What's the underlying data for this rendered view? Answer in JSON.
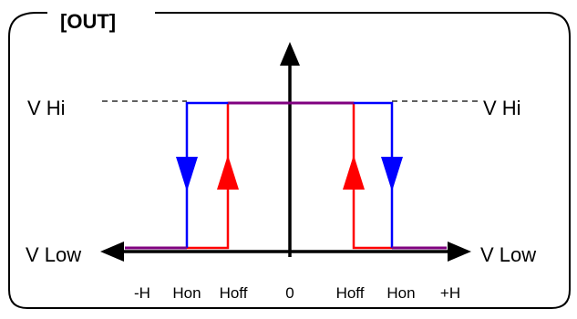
{
  "title": "[OUT]",
  "levels": {
    "high_left": "V  Hi",
    "high_right": "V  Hi",
    "low_left": "V Low",
    "low_right": "V Low"
  },
  "x_ticks": [
    "-H",
    "Hon",
    "Hoff",
    "0",
    "Hoff",
    "Hon",
    "+H"
  ],
  "colors": {
    "frame": "#000000",
    "axis": "#000000",
    "path_on": "#0000ff",
    "path_off": "#ff0000",
    "overlap": "#800080",
    "dashed": "#000000"
  }
}
